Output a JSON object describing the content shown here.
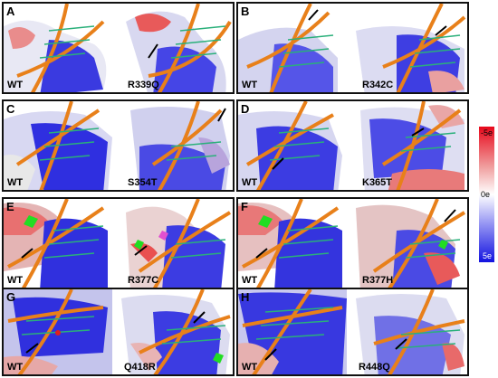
{
  "panels": [
    {
      "id": "A",
      "wt": "WT",
      "mutant": "R339Q"
    },
    {
      "id": "B",
      "wt": "WT",
      "mutant": "R342C"
    },
    {
      "id": "C",
      "wt": "WT",
      "mutant": "S354T"
    },
    {
      "id": "D",
      "wt": "WT",
      "mutant": "K365T"
    },
    {
      "id": "E",
      "wt": "WT",
      "mutant": "R377C"
    },
    {
      "id": "F",
      "wt": "WT",
      "mutant": "R377H"
    },
    {
      "id": "G",
      "wt": "WT",
      "mutant": "Q418R"
    },
    {
      "id": "H",
      "wt": "WT",
      "mutant": "R448Q"
    }
  ],
  "scale": {
    "top": "-5e",
    "middle": "0e",
    "bottom": "5e"
  },
  "colors": {
    "negative": "#e8081b",
    "neutral": "#ffffff",
    "positive": "#1212e0",
    "dna_backbone": "#e8801a",
    "dna_base": "#2ab07a",
    "arrow": "#000000"
  }
}
